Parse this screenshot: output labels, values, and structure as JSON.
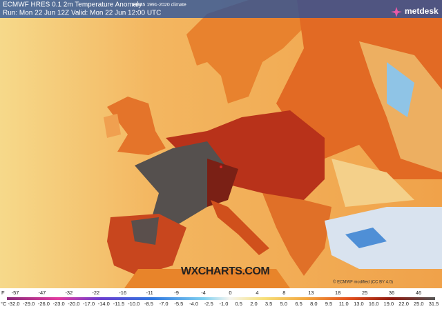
{
  "header": {
    "title": "ECMWF HRES 0.1 2m Temperature Anomaly",
    "climate": "ERA5 1991-2020 climate",
    "run": "Run: Mon 22 Jun 12Z Valid: Mon 22 Jun 12:00 UTC",
    "brand": "metdesk"
  },
  "map": {
    "watermark": "WXCHARTS.COM",
    "credit": "© ECMWF modified (CC BY 4.0)"
  },
  "legend": {
    "f_unit": "F",
    "f_labels": [
      "-57",
      "-47",
      "-32",
      "-22",
      "-16",
      "-11",
      "-9",
      "-4",
      "0",
      "4",
      "8",
      "13",
      "18",
      "25",
      "36",
      "46"
    ],
    "c_unit": "°C",
    "c_labels": [
      "-32.0",
      "-29.0",
      "-26.0",
      "-23.0",
      "-20.0",
      "-17.0",
      "-14.0",
      "-11.5",
      "-10.0",
      "-8.5",
      "-7.0",
      "-5.5",
      "-4.0",
      "-2.5",
      "-1.0",
      "0.5",
      "2.0",
      "3.5",
      "5.0",
      "6.5",
      "8.0",
      "9.5",
      "11.0",
      "13.0",
      "16.0",
      "19.0",
      "22.0",
      "25.0",
      "31.5"
    ]
  }
}
